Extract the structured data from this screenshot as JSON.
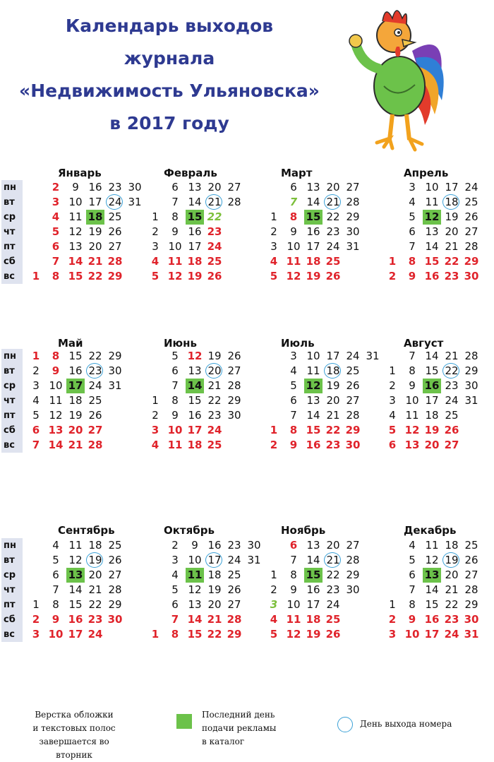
{
  "title_lines": [
    "Календарь выходов",
    "журнала",
    "«Недвижимость Ульяновска»",
    "в 2017 году"
  ],
  "weekdays": [
    "пн",
    "вт",
    "ср",
    "чт",
    "пт",
    "сб",
    "вс"
  ],
  "colors": {
    "title": "#2e3a91",
    "holiday": "#e0232b",
    "green_text": "#7cbf3b",
    "deadline_fill": "#6cc24a",
    "release_circle": "#3aa0d6",
    "weekday_band": "#dfe3ef"
  },
  "months": [
    {
      "name": "Январь",
      "columns": [
        [
          null,
          null,
          null,
          null,
          null,
          null,
          1
        ],
        [
          2,
          3,
          4,
          5,
          6,
          7,
          8
        ],
        [
          9,
          10,
          11,
          12,
          13,
          14,
          15
        ],
        [
          16,
          17,
          18,
          19,
          20,
          21,
          22
        ],
        [
          23,
          24,
          25,
          26,
          27,
          28,
          29
        ],
        [
          30,
          31,
          null,
          null,
          null,
          null,
          null
        ]
      ],
      "holidays": [
        1,
        2,
        3,
        4,
        5,
        6,
        7,
        8,
        14,
        15,
        21,
        22,
        28,
        29
      ],
      "deadline": 18,
      "release": 24,
      "green": []
    },
    {
      "name": "Февраль",
      "columns": [
        [
          null,
          null,
          1,
          2,
          3,
          4,
          5
        ],
        [
          6,
          7,
          8,
          9,
          10,
          11,
          12
        ],
        [
          13,
          14,
          15,
          16,
          17,
          18,
          19
        ],
        [
          20,
          21,
          22,
          23,
          24,
          25,
          26
        ],
        [
          27,
          28,
          null,
          null,
          null,
          null,
          null
        ]
      ],
      "holidays": [
        4,
        5,
        11,
        12,
        18,
        19,
        23,
        24,
        25,
        26
      ],
      "deadline": 15,
      "release": 21,
      "green": [
        22
      ]
    },
    {
      "name": "Март",
      "columns": [
        [
          null,
          null,
          1,
          2,
          3,
          4,
          5
        ],
        [
          6,
          7,
          8,
          9,
          10,
          11,
          12
        ],
        [
          13,
          14,
          15,
          16,
          17,
          18,
          19
        ],
        [
          20,
          21,
          22,
          23,
          24,
          25,
          26
        ],
        [
          27,
          28,
          29,
          30,
          31,
          null,
          null
        ]
      ],
      "holidays": [
        4,
        5,
        8,
        11,
        12,
        18,
        19,
        25,
        26
      ],
      "deadline": 15,
      "release": 21,
      "green": [
        7
      ]
    },
    {
      "name": "Апрель",
      "columns": [
        [
          null,
          null,
          null,
          null,
          null,
          1,
          2
        ],
        [
          3,
          4,
          5,
          6,
          7,
          8,
          9
        ],
        [
          10,
          11,
          12,
          13,
          14,
          15,
          16
        ],
        [
          17,
          18,
          19,
          20,
          21,
          22,
          23
        ],
        [
          24,
          25,
          26,
          27,
          28,
          29,
          30
        ]
      ],
      "holidays": [
        1,
        2,
        8,
        9,
        15,
        16,
        22,
        23,
        29,
        30
      ],
      "deadline": 12,
      "release": 18,
      "green": []
    },
    {
      "name": "Май",
      "columns": [
        [
          1,
          2,
          3,
          4,
          5,
          6,
          7
        ],
        [
          8,
          9,
          10,
          11,
          12,
          13,
          14
        ],
        [
          15,
          16,
          17,
          18,
          19,
          20,
          21
        ],
        [
          22,
          23,
          24,
          25,
          26,
          27,
          28
        ],
        [
          29,
          30,
          31,
          null,
          null,
          null,
          null
        ]
      ],
      "holidays": [
        1,
        6,
        7,
        8,
        9,
        13,
        14,
        20,
        21,
        27,
        28
      ],
      "deadline": 17,
      "release": 23,
      "green": []
    },
    {
      "name": "Июнь",
      "columns": [
        [
          null,
          null,
          null,
          1,
          2,
          3,
          4
        ],
        [
          5,
          6,
          7,
          8,
          9,
          10,
          11
        ],
        [
          12,
          13,
          14,
          15,
          16,
          17,
          18
        ],
        [
          19,
          20,
          21,
          22,
          23,
          24,
          25
        ],
        [
          26,
          27,
          28,
          29,
          30,
          null,
          null
        ]
      ],
      "holidays": [
        3,
        4,
        10,
        11,
        12,
        17,
        18,
        24,
        25
      ],
      "deadline": 14,
      "release": 20,
      "green": []
    },
    {
      "name": "Июль",
      "columns": [
        [
          null,
          null,
          null,
          null,
          null,
          1,
          2
        ],
        [
          3,
          4,
          5,
          6,
          7,
          8,
          9
        ],
        [
          10,
          11,
          12,
          13,
          14,
          15,
          16
        ],
        [
          17,
          18,
          19,
          20,
          21,
          22,
          23
        ],
        [
          24,
          25,
          26,
          27,
          28,
          29,
          30
        ],
        [
          31,
          null,
          null,
          null,
          null,
          null,
          null
        ]
      ],
      "holidays": [
        1,
        2,
        8,
        9,
        15,
        16,
        22,
        23,
        29,
        30
      ],
      "deadline": 12,
      "release": 18,
      "green": []
    },
    {
      "name": "Август",
      "columns": [
        [
          null,
          1,
          2,
          3,
          4,
          5,
          6
        ],
        [
          7,
          8,
          9,
          10,
          11,
          12,
          13
        ],
        [
          14,
          15,
          16,
          17,
          18,
          19,
          20
        ],
        [
          21,
          22,
          23,
          24,
          25,
          26,
          27
        ],
        [
          28,
          29,
          30,
          31,
          null,
          null,
          null
        ]
      ],
      "holidays": [
        5,
        6,
        12,
        13,
        19,
        20,
        26,
        27
      ],
      "deadline": 16,
      "release": 22,
      "green": []
    },
    {
      "name": "Сентябрь",
      "columns": [
        [
          null,
          null,
          null,
          null,
          1,
          2,
          3
        ],
        [
          4,
          5,
          6,
          7,
          8,
          9,
          10
        ],
        [
          11,
          12,
          13,
          14,
          15,
          16,
          17
        ],
        [
          18,
          19,
          20,
          21,
          22,
          23,
          24
        ],
        [
          25,
          26,
          27,
          28,
          29,
          30,
          null
        ]
      ],
      "holidays": [
        2,
        3,
        9,
        10,
        16,
        17,
        23,
        24,
        30
      ],
      "deadline": 13,
      "release": 19,
      "green": []
    },
    {
      "name": "Октябрь",
      "columns": [
        [
          null,
          null,
          null,
          null,
          null,
          null,
          1
        ],
        [
          2,
          3,
          4,
          5,
          6,
          7,
          8
        ],
        [
          9,
          10,
          11,
          12,
          13,
          14,
          15
        ],
        [
          16,
          17,
          18,
          19,
          20,
          21,
          22
        ],
        [
          23,
          24,
          25,
          26,
          27,
          28,
          29
        ],
        [
          30,
          31,
          null,
          null,
          null,
          null,
          null
        ]
      ],
      "holidays": [
        1,
        7,
        8,
        14,
        15,
        21,
        22,
        28,
        29
      ],
      "deadline": 11,
      "release": 17,
      "green": []
    },
    {
      "name": "Ноябрь",
      "columns": [
        [
          null,
          null,
          1,
          2,
          3,
          4,
          5
        ],
        [
          6,
          7,
          8,
          9,
          10,
          11,
          12
        ],
        [
          13,
          14,
          15,
          16,
          17,
          18,
          19
        ],
        [
          20,
          21,
          22,
          23,
          24,
          25,
          26
        ],
        [
          27,
          28,
          29,
          30,
          null,
          null,
          null
        ]
      ],
      "holidays": [
        4,
        5,
        6,
        11,
        12,
        18,
        19,
        25,
        26
      ],
      "deadline": 15,
      "release": 21,
      "green": [
        3
      ]
    },
    {
      "name": "Декабрь",
      "columns": [
        [
          null,
          null,
          null,
          null,
          1,
          2,
          3
        ],
        [
          4,
          5,
          6,
          7,
          8,
          9,
          10
        ],
        [
          11,
          12,
          13,
          14,
          15,
          16,
          17
        ],
        [
          18,
          19,
          20,
          21,
          22,
          23,
          24
        ],
        [
          25,
          26,
          27,
          28,
          29,
          30,
          31
        ]
      ],
      "holidays": [
        2,
        3,
        9,
        10,
        16,
        17,
        23,
        24,
        30,
        31
      ],
      "deadline": 13,
      "release": 19,
      "green": []
    }
  ],
  "legend": {
    "layout_note": [
      "Верстка обложки",
      "и текстовых полос",
      "завершается во вторник"
    ],
    "deadline": [
      "Последний день",
      "подачи рекламы",
      "в каталог"
    ],
    "release": "День выхода номера"
  }
}
